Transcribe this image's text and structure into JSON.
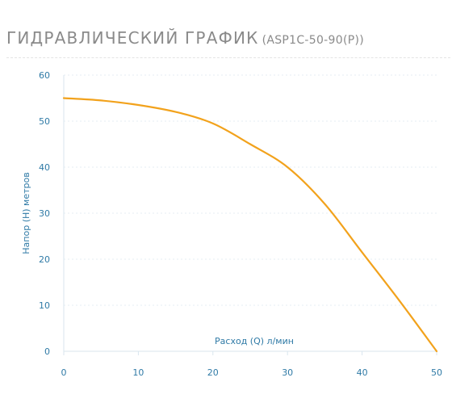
{
  "title": {
    "main": "ГИДРАВЛИЧЕСКИЙ ГРАФИК",
    "model": "(ASP1C-50-90(P))"
  },
  "colors": {
    "curve": "#f2a21c",
    "axis": "#d9e6ee",
    "grid": "#e6eef3",
    "label": "#2f7aa6",
    "title": "#8a8a8a"
  },
  "chart_data": {
    "type": "line",
    "xlabel": "Расход (Q) л/мин",
    "ylabel": "Напор (Н) метров",
    "xlim": [
      0,
      50
    ],
    "ylim": [
      0,
      60
    ],
    "x_ticks": [
      "0",
      "10",
      "20",
      "30",
      "40",
      "50"
    ],
    "y_ticks": [
      "0",
      "10",
      "20",
      "30",
      "40",
      "50",
      "60"
    ],
    "grid": "horizontal dashed",
    "series": [
      {
        "x": [
          0,
          5,
          10,
          15,
          20,
          25,
          30,
          35,
          40,
          45,
          50
        ],
        "y": [
          55,
          54.5,
          53.5,
          52,
          49.5,
          45,
          40,
          32,
          21.5,
          11,
          0
        ]
      }
    ]
  }
}
